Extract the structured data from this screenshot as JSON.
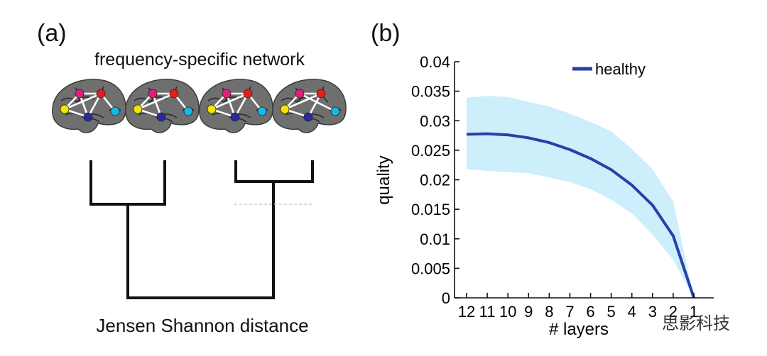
{
  "panel_a": {
    "label": "(a)",
    "title": "frequency-specific network",
    "caption": "Jensen Shannon distance",
    "node_colors": {
      "magenta": "#e0207a",
      "red": "#e02020",
      "yellow": "#f2e600",
      "blue": "#2a2a9a",
      "cyan": "#18b8e8"
    }
  },
  "panel_b": {
    "label": "(b)"
  },
  "watermark": "思影科技",
  "chart_data": {
    "type": "line",
    "xlabel": "# layers",
    "ylabel": "quality",
    "x": [
      "12",
      "11",
      "10",
      "9",
      "8",
      "7",
      "6",
      "5",
      "4",
      "3",
      "2",
      "1"
    ],
    "ylim": [
      0,
      0.04
    ],
    "yticks": [
      "0",
      "0.005",
      "0.01",
      "0.015",
      "0.02",
      "0.025",
      "0.03",
      "0.035",
      "0.04"
    ],
    "series": [
      {
        "name": "healthy",
        "color": "#2a3fa8",
        "band_color": "#cdeefb",
        "values": [
          0.0277,
          0.0278,
          0.0276,
          0.0271,
          0.0263,
          0.0251,
          0.0236,
          0.0217,
          0.0191,
          0.0157,
          0.0105,
          0.0
        ],
        "upper": [
          0.0339,
          0.0342,
          0.034,
          0.0332,
          0.0324,
          0.0312,
          0.0298,
          0.0282,
          0.0252,
          0.0218,
          0.0163,
          0.0
        ],
        "lower": [
          0.0218,
          0.0215,
          0.0213,
          0.0211,
          0.0204,
          0.0196,
          0.0184,
          0.0166,
          0.0143,
          0.0107,
          0.0065,
          0.0
        ]
      }
    ],
    "legend": "top-right",
    "grid": false
  }
}
